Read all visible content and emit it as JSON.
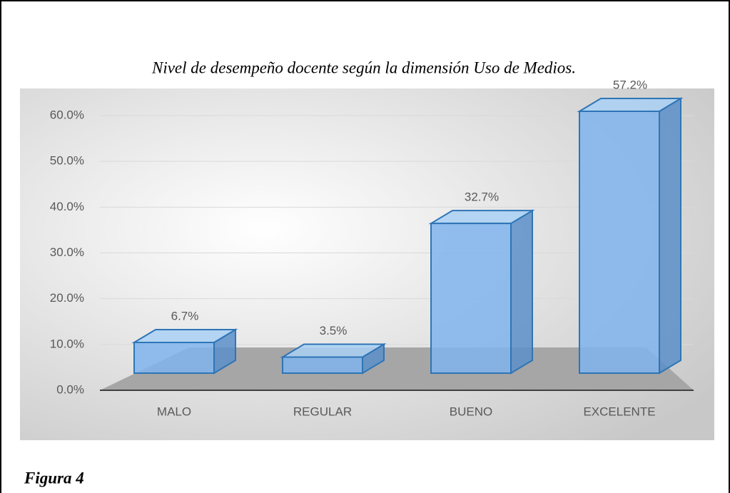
{
  "chart_data": {
    "type": "bar3d",
    "title": "Nivel de desempeño docente según la dimensión Uso de Medios.",
    "categories": [
      "MALO",
      "REGULAR",
      "BUENO",
      "EXCELENTE"
    ],
    "values": [
      6.7,
      3.5,
      32.7,
      57.2
    ],
    "value_labels": [
      "6.7%",
      "3.5%",
      "32.7%",
      "57.2%"
    ],
    "color": "#7fb4ec",
    "ylim": [
      0,
      60
    ],
    "yticks": [
      {
        "value": 0,
        "label": "0.0%"
      },
      {
        "value": 10,
        "label": "10.0%"
      },
      {
        "value": 20,
        "label": "20.0%"
      },
      {
        "value": 30,
        "label": "30.0%"
      },
      {
        "value": 40,
        "label": "40.0%"
      },
      {
        "value": 50,
        "label": "50.0%"
      },
      {
        "value": 60,
        "label": "60.0%"
      }
    ],
    "grid": true
  },
  "caption": "Figura 4"
}
